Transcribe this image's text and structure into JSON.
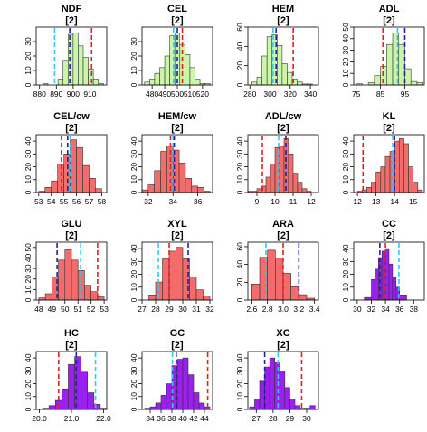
{
  "colors": {
    "green": "#ccf5aa",
    "red": "#f26c6c",
    "purple": "#9b20f0",
    "dash_red": "#dd2222",
    "dash_blue": "#22229a",
    "dash_cyan": "#33c8ee"
  },
  "chart_data": [
    {
      "type": "bar",
      "title": "NDF",
      "subtitle": "[2]",
      "color": "green",
      "xlim": [
        878,
        920
      ],
      "ylim": [
        0,
        40
      ],
      "yticks": [
        0,
        10,
        20,
        30
      ],
      "xticks": [
        880,
        890,
        900,
        910
      ],
      "bin_edges": [
        882,
        885,
        888,
        891,
        894,
        897,
        900,
        903,
        906,
        909,
        912,
        915,
        918
      ],
      "counts": [
        1,
        0,
        0,
        4,
        17,
        35,
        36,
        27,
        19,
        11,
        4,
        1
      ],
      "vlines": {
        "cyan": 889,
        "blue": 898,
        "red": 911
      }
    },
    {
      "type": "bar",
      "title": "CEL",
      "subtitle": "[2]",
      "color": "green",
      "xlim": [
        472,
        528
      ],
      "ylim": [
        0,
        40
      ],
      "yticks": [
        0,
        10,
        20,
        30
      ],
      "xticks": [
        480,
        490,
        500,
        510,
        520
      ],
      "bin_edges": [
        474,
        478,
        482,
        486,
        490,
        494,
        498,
        502,
        506,
        510,
        514,
        518,
        522,
        526
      ],
      "counts": [
        2,
        4,
        8,
        12,
        20,
        34,
        36,
        28,
        21,
        12,
        4,
        1,
        1
      ],
      "vlines": {
        "cyan": 497,
        "blue": 500,
        "red": 504
      }
    },
    {
      "type": "bar",
      "title": "HEM",
      "subtitle": "[2]",
      "color": "green",
      "xlim": [
        278,
        348
      ],
      "ylim": [
        0,
        60
      ],
      "yticks": [
        0,
        20,
        40,
        60
      ],
      "xticks": [
        280,
        300,
        320,
        340
      ],
      "bin_edges": [
        282,
        287,
        292,
        297,
        302,
        307,
        312,
        317,
        322,
        327,
        332,
        337,
        342
      ],
      "counts": [
        3,
        8,
        30,
        50,
        52,
        41,
        22,
        13,
        6,
        3,
        1,
        1
      ],
      "vlines": {
        "cyan": 303,
        "blue": 306,
        "red": 323
      }
    },
    {
      "type": "bar",
      "title": "ADL",
      "subtitle": "[2]",
      "color": "green",
      "xlim": [
        74,
        103
      ],
      "ylim": [
        0,
        50
      ],
      "yticks": [
        0,
        10,
        20,
        30,
        40,
        50
      ],
      "xticks": [
        75,
        85,
        95
      ],
      "bin_edges": [
        75,
        77.5,
        80,
        82.5,
        85,
        87.5,
        90,
        92.5,
        95,
        97.5,
        100,
        102.5
      ],
      "counts": [
        1,
        0,
        2,
        8,
        16,
        35,
        45,
        35,
        14,
        3,
        2
      ],
      "vlines": {
        "red": 86,
        "cyan": 92,
        "blue": 95
      }
    },
    {
      "type": "bar",
      "title": "CEL/cw",
      "subtitle": "[2]",
      "color": "red",
      "xlim": [
        52.8,
        58.4
      ],
      "ylim": [
        0,
        45
      ],
      "yticks": [
        0,
        10,
        20,
        30,
        40
      ],
      "xticks": [
        53,
        54,
        55,
        56,
        57,
        58
      ],
      "bin_edges": [
        53,
        53.5,
        54,
        54.5,
        55,
        55.5,
        56,
        56.5,
        57,
        57.5,
        58
      ],
      "counts": [
        1,
        4,
        9,
        22,
        30,
        41,
        35,
        21,
        11,
        3
      ],
      "vlines": {
        "red": 54.8,
        "blue": 55.3,
        "cyan": 55.5
      }
    },
    {
      "type": "bar",
      "title": "HEM/cw",
      "subtitle": "[2]",
      "color": "red",
      "xlim": [
        31.5,
        37.2
      ],
      "ylim": [
        0,
        45
      ],
      "yticks": [
        0,
        10,
        20,
        30,
        40
      ],
      "xticks": [
        32,
        34,
        36
      ],
      "bin_edges": [
        31.5,
        32,
        32.5,
        33,
        33.5,
        34,
        34.5,
        35,
        35.5,
        36,
        36.5,
        37
      ],
      "counts": [
        2,
        6,
        17,
        32,
        36,
        33,
        23,
        11,
        5,
        4,
        1
      ],
      "vlines": {
        "red": 33.8,
        "cyan": 34,
        "blue": 34.1
      }
    },
    {
      "type": "bar",
      "title": "ADL/cw",
      "subtitle": "[2]",
      "color": "red",
      "xlim": [
        8.5,
        12.4
      ],
      "ylim": [
        0,
        45
      ],
      "yticks": [
        0,
        10,
        20,
        30,
        40
      ],
      "xticks": [
        9,
        10,
        11,
        12
      ],
      "bin_edges": [
        8.5,
        9,
        9.25,
        9.5,
        9.75,
        10,
        10.25,
        10.5,
        10.75,
        11,
        11.25,
        11.5,
        11.75,
        12
      ],
      "counts": [
        1,
        3,
        5,
        12,
        22,
        35,
        36,
        42,
        30,
        15,
        8,
        3,
        1
      ],
      "vlines": {
        "red": 9.3,
        "cyan": 10.2,
        "blue": 10.6
      }
    },
    {
      "type": "bar",
      "title": "KL",
      "subtitle": "[2]",
      "color": "red",
      "xlim": [
        11.8,
        15.6
      ],
      "ylim": [
        0,
        45
      ],
      "yticks": [
        0,
        10,
        20,
        30,
        40
      ],
      "xticks": [
        12,
        13,
        14,
        15
      ],
      "bin_edges": [
        12,
        12.25,
        12.5,
        12.75,
        13,
        13.25,
        13.5,
        13.75,
        14,
        14.25,
        14.5,
        14.75,
        15,
        15.25,
        15.5
      ],
      "counts": [
        1,
        2,
        4,
        8,
        16,
        20,
        28,
        32,
        40,
        42,
        38,
        20,
        8,
        2
      ],
      "vlines": {
        "red": 12.3,
        "cyan": 13.9,
        "blue": 14
      }
    },
    {
      "type": "bar",
      "title": "GLU",
      "subtitle": "[2]",
      "color": "red",
      "xlim": [
        47.8,
        53.2
      ],
      "ylim": [
        0,
        55
      ],
      "yticks": [
        0,
        10,
        20,
        30,
        40,
        50
      ],
      "xticks": [
        48,
        49,
        50,
        51,
        52,
        53
      ],
      "bin_edges": [
        48,
        48.5,
        49,
        49.5,
        50,
        50.5,
        51,
        51.5,
        52,
        52.5,
        53
      ],
      "counts": [
        2,
        6,
        22,
        38,
        48,
        38,
        28,
        14,
        8,
        3
      ],
      "vlines": {
        "blue": 49.4,
        "cyan": 51.2,
        "red": 52.5
      }
    },
    {
      "type": "bar",
      "title": "XYL",
      "subtitle": "[2]",
      "color": "red",
      "xlim": [
        27,
        32.2
      ],
      "ylim": [
        0,
        45
      ],
      "yticks": [
        0,
        10,
        20,
        30,
        40
      ],
      "xticks": [
        27,
        28,
        29,
        30,
        31,
        32
      ],
      "bin_edges": [
        27.5,
        28,
        28.5,
        29,
        29.5,
        30,
        30.5,
        31,
        31.5,
        32
      ],
      "counts": [
        4,
        14,
        32,
        38,
        41,
        32,
        18,
        8,
        3
      ],
      "vlines": {
        "cyan": 28.2,
        "red": 29,
        "blue": 30.4
      }
    },
    {
      "type": "bar",
      "title": "ARA",
      "subtitle": "[2]",
      "color": "red",
      "xlim": [
        2.55,
        3.45
      ],
      "ylim": [
        0,
        65
      ],
      "yticks": [
        0,
        20,
        40,
        60
      ],
      "xticks": [
        2.6,
        2.8,
        3.0,
        3.2,
        3.4
      ],
      "bin_edges": [
        2.6,
        2.7,
        2.8,
        2.9,
        3,
        3.1,
        3.2,
        3.3,
        3.4
      ],
      "counts": [
        18,
        48,
        56,
        47,
        30,
        15,
        6,
        2
      ],
      "vlines": {
        "cyan": 2.78,
        "red": 3.0,
        "blue": 3.2
      }
    },
    {
      "type": "bar",
      "title": "CC",
      "subtitle": "[2]",
      "color": "purple",
      "xlim": [
        29.5,
        39.5
      ],
      "ylim": [
        0,
        45
      ],
      "yticks": [
        0,
        10,
        20,
        30,
        40
      ],
      "xticks": [
        30,
        32,
        34,
        36,
        38
      ],
      "bin_edges": [
        31,
        32,
        32.5,
        33,
        33.5,
        34,
        34.5,
        35,
        35.5,
        36,
        37
      ],
      "counts": [
        2,
        16,
        24,
        33,
        38,
        40,
        28,
        18,
        10,
        4
      ],
      "vlines": {
        "blue": 33.2,
        "red": 34,
        "cyan": 35.9
      }
    },
    {
      "type": "bar",
      "title": "HC",
      "subtitle": "[2]",
      "color": "purple",
      "xlim": [
        19.9,
        22.1
      ],
      "ylim": [
        0,
        45
      ],
      "yticks": [
        0,
        10,
        20,
        30,
        40
      ],
      "xticks": [
        20.0,
        21.0,
        22.0
      ],
      "bin_edges": [
        20.1,
        20.3,
        20.5,
        20.7,
        20.9,
        21.1,
        21.3,
        21.5,
        21.7,
        21.9,
        22.1
      ],
      "counts": [
        1,
        3,
        7,
        16,
        35,
        41,
        29,
        13,
        4,
        1
      ],
      "vlines": {
        "red": 20.6,
        "blue": 21.15,
        "cyan": 21.75
      }
    },
    {
      "type": "bar",
      "title": "GC",
      "subtitle": "[2]",
      "color": "purple",
      "xlim": [
        32.5,
        45.5
      ],
      "ylim": [
        0,
        45
      ],
      "yticks": [
        0,
        10,
        20,
        30,
        40
      ],
      "xticks": [
        34,
        36,
        38,
        40,
        42,
        44
      ],
      "bin_edges": [
        33,
        34,
        35,
        36,
        37,
        38,
        39,
        40,
        41,
        42,
        43,
        44,
        45
      ],
      "counts": [
        1,
        2,
        5,
        11,
        20,
        34,
        39,
        40,
        27,
        13,
        5,
        2
      ],
      "vlines": {
        "cyan": 38.1,
        "blue": 38.8,
        "red": 44.6
      }
    },
    {
      "type": "bar",
      "title": "XC",
      "subtitle": "[2]",
      "color": "purple",
      "xlim": [
        26.5,
        30.7
      ],
      "ylim": [
        0,
        45
      ],
      "yticks": [
        0,
        10,
        20,
        30,
        40
      ],
      "xticks": [
        27,
        28,
        29,
        30
      ],
      "bin_edges": [
        26.6,
        26.9,
        27.2,
        27.5,
        27.8,
        28.1,
        28.4,
        28.7,
        29,
        29.3,
        29.6,
        29.9,
        30.2,
        30.5
      ],
      "counts": [
        2,
        8,
        22,
        33,
        40,
        37,
        30,
        17,
        8,
        3,
        1,
        1,
        3
      ],
      "vlines": {
        "blue": 27.5,
        "cyan": 28.3,
        "red": 29.7
      }
    }
  ]
}
